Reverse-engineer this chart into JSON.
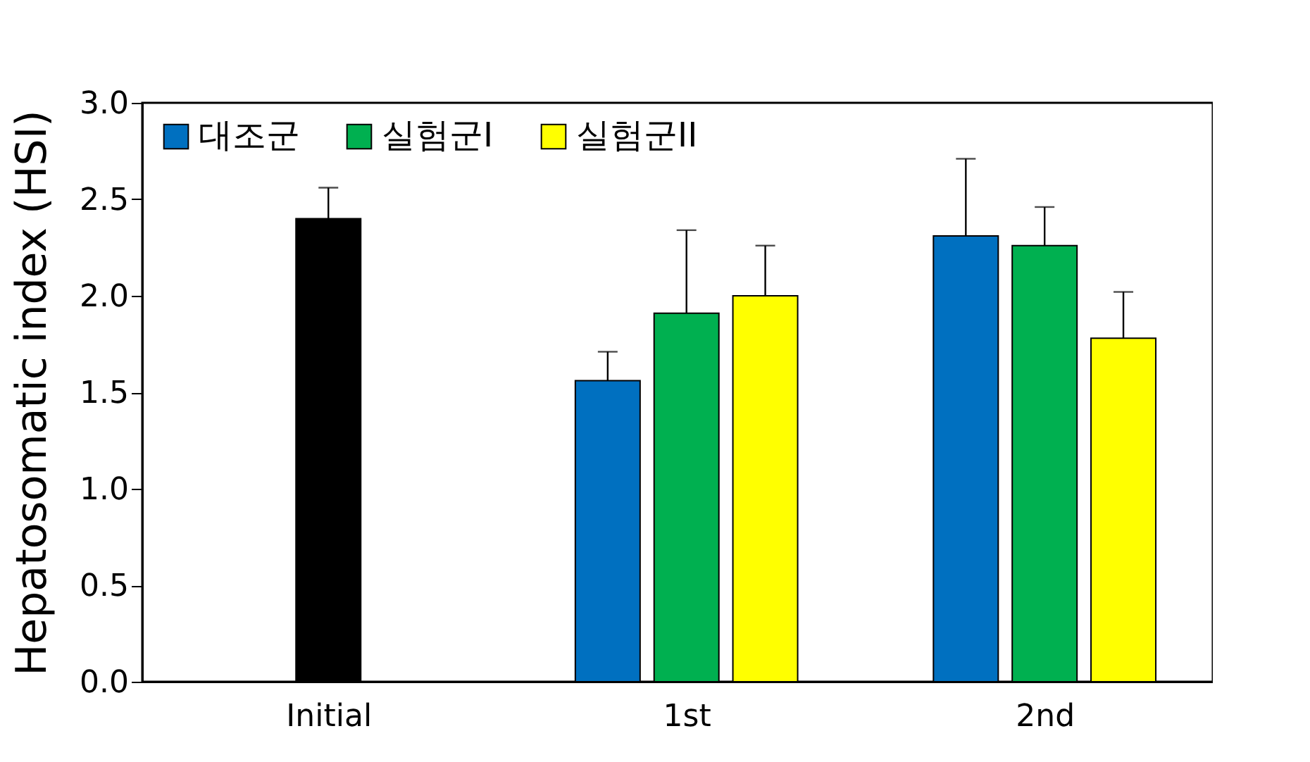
{
  "chart_data": {
    "type": "bar",
    "ylabel": "Hepatosomatic index (HSI)",
    "categories": [
      "Initial",
      "1st",
      "2nd"
    ],
    "series": [
      {
        "color": "#000000",
        "values": [
          2.4,
          null,
          null
        ],
        "errors": [
          [
            2.4,
            2.56
          ],
          null,
          null
        ]
      },
      {
        "name": "대조군",
        "color": "#0070c0",
        "values": [
          null,
          1.56,
          2.31
        ],
        "errors": [
          null,
          [
            1.56,
            1.71
          ],
          [
            2.31,
            2.71
          ]
        ]
      },
      {
        "name": "실험군I",
        "color": "#00b050",
        "values": [
          null,
          1.91,
          2.26
        ],
        "errors": [
          null,
          [
            1.91,
            2.34
          ],
          [
            2.26,
            2.46
          ]
        ]
      },
      {
        "name": "실험군II",
        "color": "#ffff00",
        "values": [
          null,
          2.0,
          1.78
        ],
        "errors": [
          null,
          [
            2.0,
            2.26
          ],
          [
            1.78,
            2.02
          ]
        ]
      }
    ],
    "ylim": [
      0,
      3.0
    ],
    "yticks": [
      {
        "value": 0,
        "label": "0.0"
      },
      0.5,
      {
        "value": 1,
        "label": "1.0"
      },
      1.5,
      {
        "value": 2,
        "label": "2.0"
      },
      2.5,
      {
        "value": 3,
        "label": "3.0"
      }
    ],
    "grid": false,
    "legend": "top left"
  }
}
